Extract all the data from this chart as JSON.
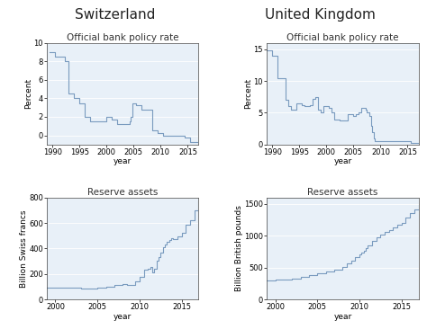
{
  "title_left": "Switzerland",
  "title_right": "United Kingdom",
  "background_color": "#e8f0f8",
  "fig_color": "#ffffff",
  "line_color": "#7a9bbf",
  "ch_rate_title": "Official bank policy rate",
  "uk_rate_title": "Official bank policy rate",
  "ch_reserve_title": "Reserve assets",
  "uk_reserve_title": "Reserve assets",
  "ch_rate_ylabel": "Percent",
  "uk_rate_ylabel": "Percent",
  "ch_reserve_ylabel": "Billion Swiss francs",
  "uk_reserve_ylabel": "Billion British pounds",
  "ch_rate_years": [
    1989.5,
    1990,
    1990.5,
    1991,
    1991.5,
    1992,
    1992.25,
    1992.5,
    1993,
    1993.5,
    1994,
    1994.5,
    1995,
    1995.5,
    1996,
    1996.5,
    1997,
    1997.5,
    1998,
    1998.5,
    1999,
    1999.5,
    2000,
    2000.5,
    2001,
    2001.5,
    2002,
    2002.5,
    2003,
    2003.5,
    2004,
    2004.25,
    2004.5,
    2004.75,
    2005,
    2005.25,
    2005.5,
    2006,
    2006.5,
    2007,
    2007.5,
    2008,
    2008.5,
    2009,
    2009.5,
    2010,
    2010.5,
    2011,
    2011.5,
    2012,
    2012.5,
    2013,
    2013.5,
    2014,
    2014.5,
    2015,
    2015.5,
    2016,
    2016.5,
    2017
  ],
  "ch_rate_vals": [
    9.0,
    9.0,
    8.5,
    8.5,
    8.5,
    8.5,
    8.0,
    8.0,
    4.5,
    4.5,
    4.0,
    4.0,
    3.5,
    3.5,
    2.0,
    2.0,
    1.5,
    1.5,
    1.5,
    1.5,
    1.5,
    1.5,
    2.0,
    2.0,
    1.75,
    1.75,
    1.25,
    1.25,
    1.25,
    1.25,
    1.25,
    1.5,
    2.0,
    3.5,
    3.5,
    3.5,
    3.25,
    3.25,
    2.75,
    2.75,
    2.75,
    2.75,
    0.5,
    0.5,
    0.25,
    0.25,
    0.0,
    0.0,
    0.0,
    0.0,
    0.0,
    0.0,
    0.0,
    0.0,
    -0.25,
    -0.25,
    -0.75,
    -0.75,
    -0.75,
    -0.75
  ],
  "uk_rate_years": [
    1989,
    1990,
    1990.5,
    1991,
    1991.5,
    1992,
    1992.5,
    1993,
    1993.5,
    1994,
    1994.5,
    1995,
    1995.5,
    1996,
    1996.5,
    1997,
    1997.5,
    1998,
    1998.5,
    1999,
    1999.5,
    2000,
    2000.5,
    2001,
    2001.5,
    2002,
    2002.5,
    2003,
    2003.5,
    2004,
    2004.5,
    2005,
    2005.5,
    2006,
    2006.5,
    2007,
    2007.25,
    2007.5,
    2008,
    2008.25,
    2008.5,
    2008.75,
    2009,
    2009.5,
    2010,
    2010.5,
    2011,
    2011.5,
    2012,
    2012.5,
    2013,
    2013.5,
    2014,
    2014.5,
    2015,
    2015.25,
    2015.5,
    2016,
    2016.5,
    2017
  ],
  "uk_rate_vals": [
    14.88,
    14.0,
    14.0,
    10.5,
    10.5,
    10.5,
    7.0,
    6.0,
    5.5,
    5.5,
    6.5,
    6.5,
    6.25,
    6.0,
    6.0,
    6.25,
    7.25,
    7.5,
    5.5,
    5.0,
    6.0,
    6.0,
    5.75,
    5.0,
    4.0,
    4.0,
    3.75,
    3.75,
    3.75,
    4.75,
    4.75,
    4.5,
    4.75,
    5.0,
    5.75,
    5.75,
    5.5,
    5.0,
    4.5,
    3.0,
    2.0,
    1.0,
    0.5,
    0.5,
    0.5,
    0.5,
    0.5,
    0.5,
    0.5,
    0.5,
    0.5,
    0.5,
    0.5,
    0.5,
    0.5,
    0.5,
    0.25,
    0.25,
    0.25,
    0.25
  ],
  "ch_reserve_years": [
    1999,
    2000,
    2001,
    2002,
    2003,
    2004,
    2005,
    2006,
    2007,
    2008,
    2008.5,
    2009,
    2009.5,
    2010,
    2010.5,
    2011,
    2011.25,
    2011.5,
    2011.75,
    2012,
    2012.25,
    2012.5,
    2012.75,
    2013,
    2013.25,
    2013.5,
    2013.75,
    2014,
    2014.5,
    2015,
    2015.5,
    2016,
    2016.5,
    2017
  ],
  "ch_reserve_vals": [
    93,
    95,
    92,
    90,
    88,
    88,
    95,
    100,
    110,
    120,
    115,
    110,
    145,
    175,
    230,
    240,
    257,
    210,
    240,
    305,
    330,
    370,
    410,
    430,
    450,
    470,
    480,
    475,
    495,
    520,
    590,
    620,
    700,
    770
  ],
  "uk_reserve_years": [
    1999,
    2000,
    2001,
    2002,
    2003,
    2004,
    2005,
    2006,
    2007,
    2008,
    2008.5,
    2009,
    2009.5,
    2010,
    2010.25,
    2010.5,
    2010.75,
    2011,
    2011.5,
    2012,
    2012.5,
    2013,
    2013.5,
    2014,
    2014.5,
    2015,
    2015.5,
    2016,
    2016.5,
    2017
  ],
  "uk_reserve_vals": [
    300,
    310,
    315,
    330,
    360,
    385,
    405,
    435,
    470,
    510,
    560,
    610,
    660,
    700,
    730,
    760,
    810,
    850,
    920,
    970,
    1020,
    1055,
    1090,
    1130,
    1170,
    1200,
    1280,
    1350,
    1420,
    1480
  ],
  "ch_rate_xlim": [
    1989,
    2017
  ],
  "uk_rate_xlim": [
    1989,
    2017
  ],
  "ch_rate_ylim": [
    -1,
    10
  ],
  "uk_rate_ylim": [
    0,
    16
  ],
  "ch_reserve_xlim": [
    1999,
    2017
  ],
  "uk_reserve_xlim": [
    1999,
    2017
  ],
  "ch_reserve_ylim": [
    0,
    800
  ],
  "uk_reserve_ylim": [
    0,
    1600
  ],
  "ch_rate_xticks": [
    1990,
    1995,
    2000,
    2005,
    2010,
    2015
  ],
  "uk_rate_xticks": [
    1990,
    1995,
    2000,
    2005,
    2010,
    2015
  ],
  "ch_reserve_xticks": [
    2000,
    2005,
    2010,
    2015
  ],
  "uk_reserve_xticks": [
    2000,
    2005,
    2010,
    2015
  ],
  "ch_rate_yticks": [
    0,
    2,
    4,
    6,
    8,
    10
  ],
  "uk_rate_yticks": [
    0,
    5,
    10,
    15
  ],
  "ch_reserve_yticks": [
    0,
    200,
    400,
    600,
    800
  ],
  "uk_reserve_yticks": [
    0,
    500,
    1000,
    1500
  ],
  "xlabel": "year",
  "label_fontsize": 6.5,
  "tick_fontsize": 6,
  "country_fontsize": 11,
  "subplot_title_fontsize": 7.5,
  "line_width": 0.8
}
